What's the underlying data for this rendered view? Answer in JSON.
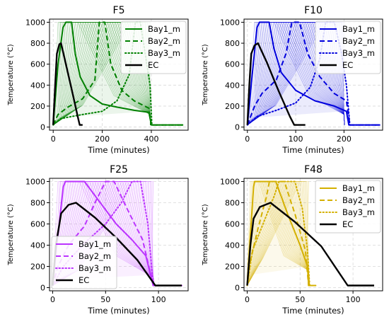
{
  "chart_data": [
    {
      "type": "line",
      "title": "F5",
      "xlabel": "Time (minutes)",
      "ylabel": "Temperature (°C)",
      "xlim": [
        -15,
        550
      ],
      "ylim": [
        -30,
        1030
      ],
      "xticks": [
        0,
        200,
        400
      ],
      "yticks": [
        0,
        200,
        400,
        600,
        800,
        1000
      ],
      "grid": true,
      "legend": "top-right",
      "color": "#008000",
      "band": {
        "start": 20,
        "end": 395,
        "count": 30,
        "plateau": 80,
        "base": 150
      },
      "series": [
        {
          "name": "Bay1_m",
          "style": "solid",
          "points": [
            [
              0,
              20
            ],
            [
              20,
              600
            ],
            [
              40,
              950
            ],
            [
              52,
              1000
            ],
            [
              75,
              1000
            ],
            [
              90,
              700
            ],
            [
              110,
              480
            ],
            [
              150,
              300
            ],
            [
              200,
              220
            ],
            [
              260,
              190
            ],
            [
              330,
              160
            ],
            [
              390,
              140
            ],
            [
              400,
              20
            ],
            [
              530,
              20
            ]
          ]
        },
        {
          "name": "Bay2_m",
          "style": "dashed",
          "points": [
            [
              0,
              20
            ],
            [
              20,
              120
            ],
            [
              60,
              190
            ],
            [
              120,
              270
            ],
            [
              170,
              450
            ],
            [
              188,
              1000
            ],
            [
              210,
              1000
            ],
            [
              235,
              600
            ],
            [
              280,
              350
            ],
            [
              330,
              250
            ],
            [
              390,
              180
            ],
            [
              400,
              20
            ],
            [
              530,
              20
            ]
          ]
        },
        {
          "name": "Bay3_m",
          "style": "dotted",
          "points": [
            [
              0,
              20
            ],
            [
              30,
              80
            ],
            [
              120,
              120
            ],
            [
              200,
              150
            ],
            [
              260,
              250
            ],
            [
              310,
              500
            ],
            [
              335,
              1000
            ],
            [
              355,
              1000
            ],
            [
              375,
              700
            ],
            [
              395,
              400
            ],
            [
              402,
              20
            ],
            [
              530,
              20
            ]
          ]
        },
        {
          "name": "EC",
          "style": "solid",
          "points": [
            [
              0,
              20
            ],
            [
              8,
              400
            ],
            [
              15,
              700
            ],
            [
              25,
              790
            ],
            [
              32,
              800
            ],
            [
              50,
              620
            ],
            [
              80,
              310
            ],
            [
              100,
              100
            ],
            [
              108,
              20
            ],
            [
              120,
              20
            ]
          ]
        }
      ]
    },
    {
      "type": "line",
      "title": "F10",
      "xlabel": "Time (minutes)",
      "ylabel": "Temperature (°C)",
      "xlim": [
        -7,
        280
      ],
      "ylim": [
        -30,
        1030
      ],
      "xticks": [
        0,
        100,
        200
      ],
      "yticks": [
        0,
        200,
        400,
        600,
        800,
        1000
      ],
      "grid": true,
      "legend": "top-right",
      "color": "#0000dd",
      "band": {
        "start": 15,
        "end": 200,
        "count": 30,
        "plateau": 40,
        "base": 150
      },
      "series": [
        {
          "name": "Bay1_m",
          "style": "solid",
          "points": [
            [
              0,
              20
            ],
            [
              10,
              500
            ],
            [
              20,
              950
            ],
            [
              25,
              1000
            ],
            [
              45,
              1000
            ],
            [
              55,
              750
            ],
            [
              70,
              520
            ],
            [
              100,
              350
            ],
            [
              140,
              250
            ],
            [
              180,
              200
            ],
            [
              205,
              150
            ],
            [
              210,
              20
            ],
            [
              275,
              20
            ]
          ]
        },
        {
          "name": "Bay2_m",
          "style": "dashed",
          "points": [
            [
              0,
              20
            ],
            [
              15,
              200
            ],
            [
              30,
              320
            ],
            [
              60,
              450
            ],
            [
              80,
              700
            ],
            [
              92,
              1000
            ],
            [
              108,
              1000
            ],
            [
              125,
              700
            ],
            [
              150,
              480
            ],
            [
              180,
              320
            ],
            [
              205,
              250
            ],
            [
              212,
              20
            ],
            [
              275,
              20
            ]
          ]
        },
        {
          "name": "Bay3_m",
          "style": "dotted",
          "points": [
            [
              0,
              20
            ],
            [
              20,
              100
            ],
            [
              60,
              160
            ],
            [
              100,
              230
            ],
            [
              130,
              380
            ],
            [
              150,
              650
            ],
            [
              162,
              1000
            ],
            [
              180,
              1000
            ],
            [
              195,
              700
            ],
            [
              205,
              400
            ],
            [
              212,
              20
            ],
            [
              275,
              20
            ]
          ]
        },
        {
          "name": "EC",
          "style": "solid",
          "points": [
            [
              0,
              20
            ],
            [
              4,
              400
            ],
            [
              8,
              700
            ],
            [
              15,
              780
            ],
            [
              22,
              800
            ],
            [
              40,
              620
            ],
            [
              65,
              340
            ],
            [
              88,
              100
            ],
            [
              97,
              20
            ],
            [
              120,
              20
            ]
          ]
        }
      ]
    },
    {
      "type": "line",
      "title": "F25",
      "xlabel": "Time (minutes)",
      "ylabel": "Temperature (°C)",
      "xlim": [
        -3,
        128
      ],
      "ylim": [
        -30,
        1030
      ],
      "xticks": [
        0,
        50,
        100
      ],
      "yticks": [
        0,
        200,
        400,
        600,
        800,
        1000
      ],
      "grid": true,
      "legend": "bottom-left",
      "color": "#bb33ff",
      "band": {
        "start": 5,
        "end": 95,
        "count": 30,
        "plateau": 20,
        "base": 120
      },
      "series": [
        {
          "name": "Bay1_m",
          "style": "solid",
          "points": [
            [
              0,
              20
            ],
            [
              5,
              500
            ],
            [
              10,
              950
            ],
            [
              12,
              1000
            ],
            [
              30,
              1000
            ],
            [
              45,
              800
            ],
            [
              60,
              600
            ],
            [
              75,
              450
            ],
            [
              88,
              300
            ],
            [
              95,
              20
            ],
            [
              122,
              20
            ]
          ]
        },
        {
          "name": "Bay2_m",
          "style": "dashed",
          "points": [
            [
              0,
              20
            ],
            [
              5,
              200
            ],
            [
              15,
              400
            ],
            [
              30,
              580
            ],
            [
              40,
              800
            ],
            [
              50,
              1000
            ],
            [
              58,
              1000
            ],
            [
              70,
              750
            ],
            [
              85,
              450
            ],
            [
              95,
              20
            ],
            [
              122,
              20
            ]
          ]
        },
        {
          "name": "Bay3_m",
          "style": "dotted",
          "points": [
            [
              0,
              20
            ],
            [
              10,
              200
            ],
            [
              30,
              420
            ],
            [
              50,
              600
            ],
            [
              65,
              800
            ],
            [
              75,
              1000
            ],
            [
              83,
              1000
            ],
            [
              90,
              600
            ],
            [
              95,
              20
            ],
            [
              122,
              20
            ]
          ]
        },
        {
          "name": "EC",
          "style": "solid",
          "points": [
            [
              0,
              20
            ],
            [
              3,
              400
            ],
            [
              8,
              700
            ],
            [
              15,
              780
            ],
            [
              22,
              800
            ],
            [
              40,
              660
            ],
            [
              60,
              470
            ],
            [
              80,
              260
            ],
            [
              97,
              20
            ],
            [
              122,
              20
            ]
          ]
        }
      ]
    },
    {
      "type": "line",
      "title": "F48",
      "xlabel": "Time (minutes)",
      "ylabel": "Temperature (°C)",
      "xlim": [
        -3,
        128
      ],
      "ylim": [
        -30,
        1030
      ],
      "xticks": [
        0,
        50,
        100
      ],
      "yticks": [
        0,
        200,
        400,
        600,
        800,
        1000
      ],
      "grid": true,
      "legend": "top-right",
      "color": "#d4b000",
      "band": {
        "start": 3,
        "end": 58,
        "count": 30,
        "plateau": 8,
        "base": 200
      },
      "series": [
        {
          "name": "Bay1_m",
          "style": "solid",
          "points": [
            [
              0,
              20
            ],
            [
              3,
              500
            ],
            [
              6,
              950
            ],
            [
              7,
              1000
            ],
            [
              27,
              1000
            ],
            [
              38,
              700
            ],
            [
              50,
              400
            ],
            [
              57,
              200
            ],
            [
              58,
              20
            ],
            [
              65,
              20
            ]
          ]
        },
        {
          "name": "Bay2_m",
          "style": "dashed",
          "points": [
            [
              0,
              20
            ],
            [
              3,
              250
            ],
            [
              10,
              550
            ],
            [
              18,
              850
            ],
            [
              21,
              1000
            ],
            [
              35,
              1000
            ],
            [
              45,
              700
            ],
            [
              55,
              350
            ],
            [
              58,
              20
            ],
            [
              65,
              20
            ]
          ]
        },
        {
          "name": "Bay3_m",
          "style": "dotted",
          "points": [
            [
              0,
              20
            ],
            [
              5,
              350
            ],
            [
              15,
              600
            ],
            [
              25,
              850
            ],
            [
              30,
              1000
            ],
            [
              45,
              1000
            ],
            [
              52,
              750
            ],
            [
              57,
              350
            ],
            [
              59,
              20
            ],
            [
              65,
              20
            ]
          ]
        },
        {
          "name": "EC",
          "style": "solid",
          "points": [
            [
              0,
              20
            ],
            [
              3,
              400
            ],
            [
              6,
              650
            ],
            [
              12,
              760
            ],
            [
              22,
              800
            ],
            [
              45,
              620
            ],
            [
              70,
              390
            ],
            [
              95,
              20
            ],
            [
              120,
              20
            ]
          ]
        }
      ]
    }
  ]
}
